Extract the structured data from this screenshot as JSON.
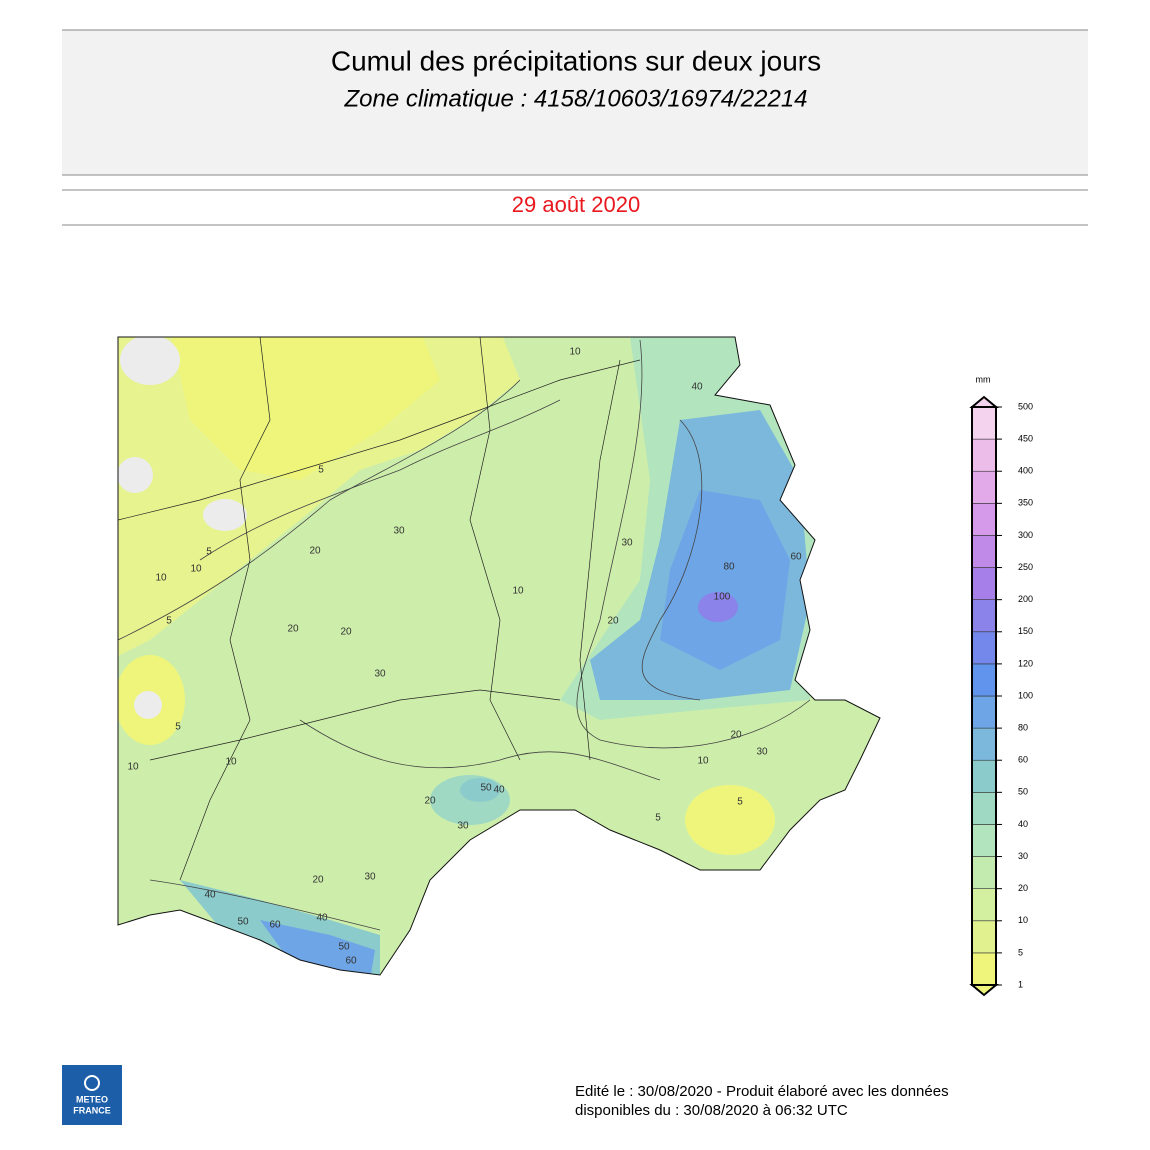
{
  "header": {
    "title": "Cumul des précipitations sur deux jours",
    "subtitle": "Zone climatique : 4158/10603/16974/22214"
  },
  "date": "29 août 2020",
  "map": {
    "contour_labels": [
      10,
      40,
      5,
      5,
      10,
      20,
      30,
      10,
      5,
      20,
      20,
      30,
      10,
      20,
      30,
      60,
      100,
      80,
      20,
      30,
      10,
      5,
      5,
      20,
      50,
      30,
      40,
      30,
      20,
      50,
      60,
      40,
      60,
      40,
      10,
      10,
      5,
      50
    ]
  },
  "legend": {
    "unit": "mm",
    "levels": [
      1,
      5,
      10,
      20,
      30,
      40,
      50,
      60,
      80,
      100,
      120,
      150,
      200,
      250,
      300,
      350,
      400,
      450,
      500
    ],
    "colors": [
      "#eef57a",
      "#e1f18f",
      "#d3efa0",
      "#c3ebb0",
      "#b2e5bd",
      "#9fd9c4",
      "#8ccbcb",
      "#7cb8dc",
      "#6ea5e6",
      "#6194ec",
      "#7488ec",
      "#8b83ea",
      "#a67fe8",
      "#bf8ae8",
      "#d59ae9",
      "#e2aae9",
      "#ecbde9",
      "#f4d3ef"
    ]
  },
  "footer": {
    "line1": "Edité le : 30/08/2020 - Produit élaboré avec les données",
    "line2": "disponibles du : 30/08/2020 à 06:32 UTC"
  },
  "logo": {
    "line1": "METEO",
    "line2": "FRANCE"
  }
}
